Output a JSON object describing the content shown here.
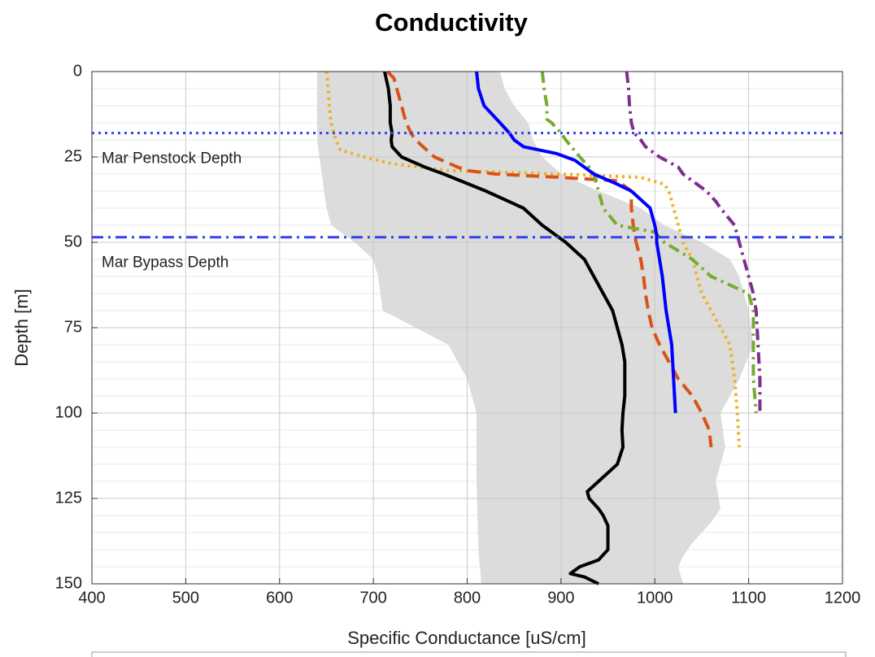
{
  "chart_data": {
    "type": "profile",
    "title": "Conductivity",
    "x_label": "Specific Conductance [uS/cm]",
    "y_label": "Depth [m]",
    "xlim": [
      400,
      1200
    ],
    "xticks": [
      400,
      500,
      600,
      700,
      800,
      900,
      1000,
      1100,
      1200
    ],
    "ylim": [
      0,
      150
    ],
    "yticks": [
      0,
      25,
      50,
      75,
      100,
      125,
      150
    ],
    "y_reversed": true,
    "grid": true,
    "minor_grid": true,
    "band": {
      "color": "#dcdcdc",
      "high": {
        "depth": [
          0,
          5,
          10,
          15,
          20,
          25,
          30,
          35,
          40,
          45,
          50,
          55,
          60,
          65,
          70,
          80,
          90,
          100,
          110,
          120,
          128,
          132,
          138,
          142,
          145,
          150
        ],
        "values": [
          835,
          840,
          850,
          865,
          870,
          880,
          900,
          940,
          985,
          1010,
          1050,
          1080,
          1090,
          1095,
          1100,
          1105,
          1090,
          1070,
          1075,
          1065,
          1070,
          1060,
          1040,
          1030,
          1025,
          1030
        ]
      },
      "low": {
        "depth": [
          0,
          10,
          20,
          30,
          40,
          45,
          50,
          55,
          60,
          70,
          80,
          90,
          100,
          110,
          120,
          140,
          150
        ],
        "values": [
          640,
          640,
          640,
          645,
          650,
          655,
          680,
          700,
          705,
          710,
          780,
          800,
          810,
          810,
          810,
          812,
          815
        ]
      }
    },
    "series": [
      {
        "color": "#edb120",
        "dash": "dotted",
        "depth": [
          0,
          5,
          10,
          15,
          20,
          23,
          25,
          27,
          29,
          30,
          31,
          33,
          35,
          40,
          45,
          50,
          55,
          60,
          65,
          70,
          75,
          80,
          90,
          100,
          110
        ],
        "values": [
          650,
          652,
          653,
          655,
          660,
          665,
          690,
          720,
          780,
          900,
          985,
          1010,
          1015,
          1020,
          1025,
          1030,
          1040,
          1045,
          1050,
          1060,
          1070,
          1080,
          1085,
          1088,
          1090
        ]
      },
      {
        "color": "#d95319",
        "dash": "dashed",
        "depth": [
          0,
          2,
          5,
          8,
          10,
          15,
          18,
          20,
          25,
          28,
          29,
          30,
          31,
          32,
          35,
          40,
          45,
          50,
          55,
          60,
          65,
          70,
          75,
          80,
          85,
          90,
          95,
          100,
          105,
          110
        ],
        "values": [
          715,
          722,
          725,
          728,
          730,
          735,
          740,
          745,
          765,
          790,
          800,
          830,
          900,
          960,
          975,
          975,
          977,
          980,
          985,
          988,
          990,
          993,
          997,
          1005,
          1015,
          1025,
          1040,
          1050,
          1058,
          1060
        ]
      },
      {
        "color": "#77ac30",
        "dash": "dashdot",
        "depth": [
          0,
          5,
          10,
          14,
          15,
          18,
          20,
          25,
          28,
          30,
          35,
          40,
          45,
          47,
          50,
          55,
          60,
          65,
          70,
          80,
          90,
          100
        ],
        "values": [
          880,
          882,
          885,
          885,
          890,
          900,
          905,
          920,
          930,
          935,
          940,
          945,
          960,
          1000,
          1010,
          1040,
          1060,
          1100,
          1105,
          1105,
          1105,
          1108
        ]
      },
      {
        "color": "#7e2f8e",
        "dash": "dashdot",
        "depth": [
          0,
          5,
          10,
          15,
          18,
          20,
          22,
          25,
          28,
          30,
          35,
          38,
          40,
          45,
          50,
          55,
          60,
          65,
          70,
          80,
          90,
          100
        ],
        "values": [
          970,
          972,
          973,
          975,
          978,
          985,
          990,
          1005,
          1025,
          1030,
          1055,
          1065,
          1070,
          1085,
          1090,
          1095,
          1100,
          1105,
          1108,
          1110,
          1112,
          1112
        ]
      },
      {
        "color": "#0000ff",
        "dash": "solid",
        "depth": [
          0,
          5,
          10,
          15,
          18,
          20,
          22,
          24,
          26,
          28,
          30,
          33,
          35,
          40,
          45,
          48,
          50,
          55,
          60,
          70,
          80,
          90,
          100
        ],
        "values": [
          810,
          812,
          818,
          835,
          845,
          850,
          860,
          895,
          915,
          925,
          935,
          960,
          975,
          995,
          1000,
          1002,
          1002,
          1005,
          1008,
          1012,
          1018,
          1020,
          1022
        ]
      },
      {
        "color": "#000000",
        "dash": "solid",
        "depth": [
          0,
          5,
          10,
          15,
          18,
          20,
          22,
          25,
          28,
          30,
          35,
          40,
          45,
          48,
          50,
          55,
          60,
          65,
          70,
          75,
          80,
          85,
          90,
          95,
          100,
          105,
          110,
          115,
          120,
          123,
          125,
          128,
          130,
          133,
          135,
          140,
          143,
          145,
          147,
          148,
          150
        ],
        "values": [
          712,
          716,
          718,
          718,
          720,
          719,
          720,
          730,
          755,
          775,
          820,
          860,
          880,
          895,
          905,
          925,
          935,
          945,
          955,
          960,
          965,
          968,
          968,
          968,
          966,
          965,
          966,
          960,
          940,
          928,
          930,
          940,
          945,
          950,
          950,
          950,
          940,
          920,
          910,
          925,
          940
        ]
      }
    ],
    "hlines": [
      {
        "depth": 18,
        "label": "Mar Penstock Depth",
        "dash": "dotted",
        "color": "#3344ee"
      },
      {
        "depth": 48.5,
        "label": "Mar Bypass Depth",
        "dash": "dashdot",
        "color": "#3344ee"
      }
    ]
  }
}
